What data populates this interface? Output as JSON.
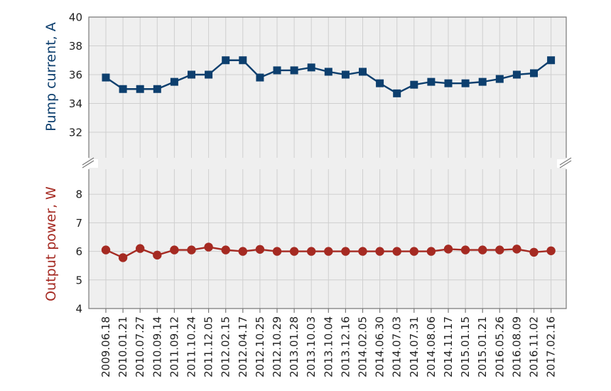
{
  "chart_data": {
    "type": "line",
    "categories": [
      "2009.06.18",
      "2010.01.21",
      "2010.07.27",
      "2010.09.14",
      "2011.09.12",
      "2011.10.24",
      "2011.12.05",
      "2012.02.15",
      "2012.04.17",
      "2012.10.25",
      "2012.10.29",
      "2013.01.28",
      "2013.10.03",
      "2013.10.04",
      "2013.12.16",
      "2014.02.05",
      "2014.06.30",
      "2014.07.03",
      "2014.07.31",
      "2014.08.06",
      "2014.11.17",
      "2015.01.15",
      "2015.01.21",
      "2016.05.26",
      "2016.08.09",
      "2016.11.02",
      "2017.02.16"
    ],
    "grid": true,
    "axis_break": true,
    "panels": [
      {
        "ylabel": "Pump current, A",
        "ylim": [
          30,
          40
        ],
        "yticks": [
          "32",
          "34",
          "36",
          "38",
          "40"
        ],
        "color": "#0d3f6e",
        "marker": "square",
        "series": [
          {
            "values": [
              35.8,
              35.0,
              35.0,
              35.0,
              35.5,
              36.0,
              36.0,
              37.0,
              37.0,
              35.8,
              36.3,
              36.3,
              36.5,
              36.2,
              36.0,
              36.2,
              35.4,
              34.7,
              35.3,
              35.5,
              35.4,
              35.4,
              35.5,
              35.7,
              36.0,
              36.1,
              37.0
            ]
          }
        ]
      },
      {
        "ylabel": "Output power, W",
        "ylim": [
          4,
          9
        ],
        "yticks": [
          "4",
          "5",
          "6",
          "7",
          "8"
        ],
        "color": "#a52a22",
        "marker": "circle",
        "series": [
          {
            "values": [
              6.05,
              5.78,
              6.1,
              5.87,
              6.05,
              6.05,
              6.15,
              6.05,
              6.0,
              6.07,
              6.0,
              6.0,
              6.0,
              6.0,
              6.0,
              6.0,
              6.0,
              6.0,
              6.0,
              6.0,
              6.08,
              6.05,
              6.05,
              6.05,
              6.08,
              5.97,
              6.02
            ]
          }
        ]
      }
    ]
  }
}
